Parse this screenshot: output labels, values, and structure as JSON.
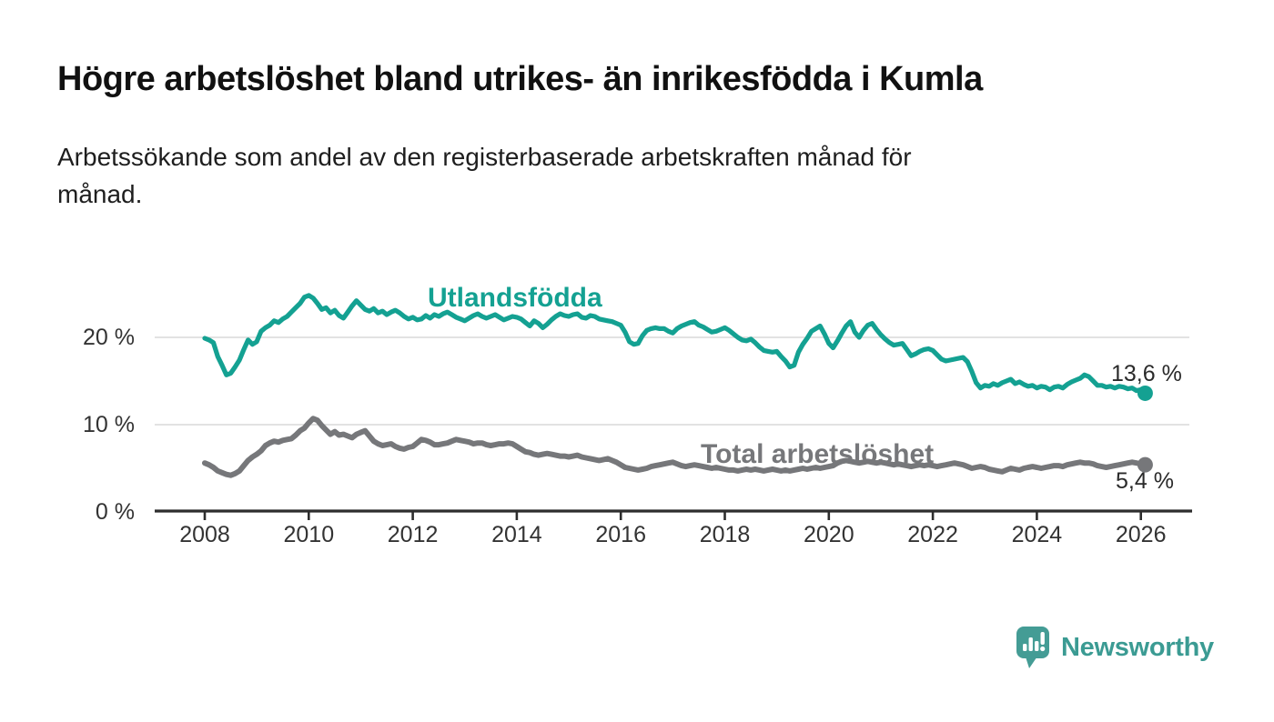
{
  "header": {
    "title": "Högre arbetslöshet bland utrikes- än inrikesfödda i Kumla",
    "subtitle": "Arbetssökande som andel av den registerbaserade arbetskraften månad för\nmånad."
  },
  "footer": {
    "brand": "Newsworthy",
    "brand_color": "#3b9b93",
    "logo_icon": "speech-bubble-bar-chart-icon"
  },
  "chart_data": {
    "type": "line",
    "unit": "%",
    "grid": "horizontal-only",
    "legend_position": "inline-labels",
    "x_axis": {
      "ticks": [
        2008,
        2010,
        2012,
        2014,
        2016,
        2018,
        2020,
        2022,
        2024,
        2026
      ],
      "range": [
        2007.05,
        2027
      ]
    },
    "y_axis": {
      "ticks": [
        {
          "value": 0,
          "label": "0 %"
        },
        {
          "value": 10,
          "label": "10 %"
        },
        {
          "value": 20,
          "label": "20 %"
        }
      ],
      "grid_values": [
        10,
        20
      ],
      "range": [
        0,
        27
      ]
    },
    "colors": {
      "axis": "#2d2d2d",
      "gridline": "#d8d8d8",
      "tick_text": "#333333"
    },
    "series": [
      {
        "name": "Utlandsfödda",
        "color": "#14a192",
        "end_label": "13,6 %",
        "end_value": 13.6,
        "start_year": 2008.0,
        "step_years": 0.08333,
        "values": [
          19.9,
          19.7,
          19.4,
          17.8,
          16.8,
          15.7,
          15.9,
          16.6,
          17.4,
          18.6,
          19.7,
          19.2,
          19.5,
          20.7,
          21.1,
          21.4,
          21.9,
          21.7,
          22.1,
          22.4,
          22.9,
          23.4,
          23.9,
          24.6,
          24.8,
          24.5,
          23.9,
          23.2,
          23.4,
          22.8,
          23.1,
          22.5,
          22.2,
          22.9,
          23.6,
          24.2,
          23.7,
          23.2,
          23.0,
          23.3,
          22.8,
          23.0,
          22.6,
          22.9,
          23.1,
          22.8,
          22.4,
          22.1,
          22.3,
          22.0,
          22.1,
          22.5,
          22.2,
          22.6,
          22.4,
          22.7,
          22.9,
          22.6,
          22.3,
          22.1,
          21.9,
          22.2,
          22.5,
          22.7,
          22.4,
          22.2,
          22.4,
          22.6,
          22.3,
          22.0,
          22.2,
          22.4,
          22.3,
          22.1,
          21.7,
          21.3,
          21.9,
          21.6,
          21.1,
          21.5,
          22.0,
          22.4,
          22.7,
          22.5,
          22.4,
          22.6,
          22.7,
          22.3,
          22.2,
          22.5,
          22.4,
          22.1,
          22.0,
          21.9,
          21.8,
          21.6,
          21.4,
          20.6,
          19.5,
          19.2,
          19.3,
          20.2,
          20.8,
          21.0,
          21.1,
          21.0,
          21.0,
          20.7,
          20.5,
          21.0,
          21.3,
          21.5,
          21.7,
          21.8,
          21.4,
          21.2,
          20.9,
          20.6,
          20.7,
          20.9,
          21.1,
          20.8,
          20.4,
          20.0,
          19.7,
          19.6,
          19.8,
          19.4,
          18.9,
          18.5,
          18.4,
          18.3,
          18.4,
          17.8,
          17.3,
          16.6,
          16.8,
          18.3,
          19.2,
          19.9,
          20.7,
          21.0,
          21.3,
          20.4,
          19.3,
          18.8,
          19.6,
          20.5,
          21.3,
          21.8,
          20.6,
          20.0,
          20.8,
          21.4,
          21.6,
          20.9,
          20.3,
          19.8,
          19.4,
          19.1,
          19.2,
          19.3,
          18.6,
          17.9,
          18.1,
          18.4,
          18.6,
          18.7,
          18.5,
          18.0,
          17.5,
          17.3,
          17.4,
          17.5,
          17.6,
          17.7,
          17.2,
          16.1,
          14.8,
          14.2,
          14.5,
          14.4,
          14.7,
          14.5,
          14.8,
          15.0,
          15.2,
          14.7,
          14.9,
          14.6,
          14.4,
          14.5,
          14.2,
          14.4,
          14.3,
          14.0,
          14.3,
          14.4,
          14.2,
          14.6,
          14.9,
          15.1,
          15.3,
          15.7,
          15.5,
          15.0,
          14.5,
          14.5,
          14.3,
          14.4,
          14.2,
          14.4,
          14.3,
          14.1,
          14.2,
          13.9,
          14.0,
          13.6
        ]
      },
      {
        "name": "Total arbetslöshet",
        "color": "#76777a",
        "end_label": "5,4 %",
        "end_value": 5.4,
        "start_year": 2008.0,
        "step_years": 0.08333,
        "values": [
          5.6,
          5.4,
          5.1,
          4.7,
          4.5,
          4.3,
          4.2,
          4.4,
          4.7,
          5.3,
          5.9,
          6.3,
          6.6,
          7.0,
          7.6,
          7.9,
          8.1,
          8.0,
          8.2,
          8.3,
          8.4,
          8.8,
          9.3,
          9.6,
          10.2,
          10.7,
          10.5,
          9.9,
          9.4,
          8.9,
          9.2,
          8.8,
          8.9,
          8.7,
          8.5,
          8.9,
          9.1,
          9.3,
          8.7,
          8.1,
          7.8,
          7.6,
          7.7,
          7.8,
          7.5,
          7.3,
          7.2,
          7.4,
          7.5,
          7.9,
          8.3,
          8.2,
          8.0,
          7.7,
          7.7,
          7.8,
          7.9,
          8.1,
          8.3,
          8.2,
          8.1,
          8.0,
          7.8,
          7.9,
          7.9,
          7.7,
          7.6,
          7.7,
          7.8,
          7.8,
          7.9,
          7.8,
          7.5,
          7.2,
          6.9,
          6.8,
          6.6,
          6.5,
          6.6,
          6.7,
          6.6,
          6.5,
          6.4,
          6.4,
          6.3,
          6.4,
          6.5,
          6.3,
          6.2,
          6.1,
          6.0,
          5.9,
          6.0,
          6.1,
          5.9,
          5.7,
          5.4,
          5.1,
          5.0,
          4.9,
          4.8,
          4.9,
          5.0,
          5.2,
          5.3,
          5.4,
          5.5,
          5.6,
          5.7,
          5.5,
          5.3,
          5.2,
          5.3,
          5.4,
          5.3,
          5.2,
          5.1,
          5.0,
          5.1,
          5.0,
          4.9,
          4.8,
          4.8,
          4.7,
          4.8,
          4.9,
          4.8,
          4.9,
          4.8,
          4.7,
          4.8,
          4.9,
          4.8,
          4.7,
          4.8,
          4.7,
          4.8,
          4.9,
          5.0,
          4.9,
          5.0,
          5.1,
          5.0,
          5.1,
          5.2,
          5.3,
          5.6,
          5.8,
          5.9,
          5.8,
          5.7,
          5.6,
          5.7,
          5.8,
          5.7,
          5.6,
          5.7,
          5.6,
          5.5,
          5.4,
          5.5,
          5.4,
          5.3,
          5.2,
          5.3,
          5.4,
          5.3,
          5.4,
          5.3,
          5.2,
          5.3,
          5.4,
          5.5,
          5.6,
          5.5,
          5.4,
          5.2,
          5.0,
          5.1,
          5.2,
          5.1,
          4.9,
          4.8,
          4.7,
          4.6,
          4.8,
          5.0,
          4.9,
          4.8,
          5.0,
          5.1,
          5.2,
          5.1,
          5.0,
          5.1,
          5.2,
          5.3,
          5.3,
          5.2,
          5.4,
          5.5,
          5.6,
          5.7,
          5.6,
          5.6,
          5.5,
          5.3,
          5.2,
          5.1,
          5.2,
          5.3,
          5.4,
          5.5,
          5.6,
          5.7,
          5.6,
          5.5,
          5.4
        ]
      }
    ]
  }
}
